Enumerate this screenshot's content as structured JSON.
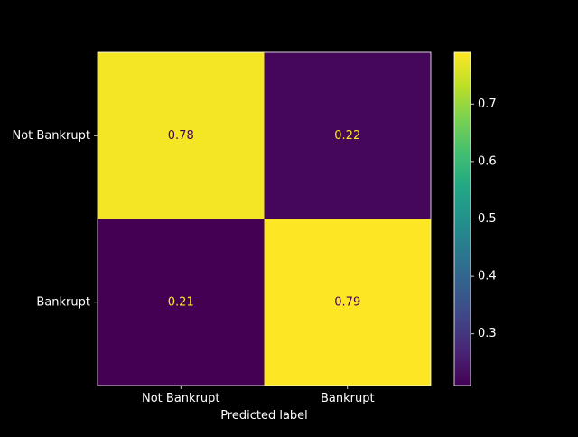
{
  "chart_data": {
    "type": "heatmap",
    "title": "",
    "xlabel": "Predicted label",
    "ylabel": "",
    "x_categories": [
      "Not Bankrupt",
      "Bankrupt"
    ],
    "y_categories": [
      "Not Bankrupt",
      "Bankrupt"
    ],
    "values": [
      [
        0.78,
        0.22
      ],
      [
        0.21,
        0.79
      ]
    ],
    "cell_labels": [
      [
        "0.78",
        "0.22"
      ],
      [
        "0.21",
        "0.79"
      ]
    ],
    "colormap": "viridis",
    "colorbar": {
      "vmin": 0.21,
      "vmax": 0.79,
      "ticks": [
        0.3,
        0.4,
        0.5,
        0.6,
        0.7
      ],
      "tick_labels": [
        "0.3",
        "0.4",
        "0.5",
        "0.6",
        "0.7"
      ]
    },
    "colors": {
      "background": "#000000",
      "foreground": "#ffffff",
      "high_cell_text": "#440154",
      "low_cell_text": "#fde725"
    }
  }
}
